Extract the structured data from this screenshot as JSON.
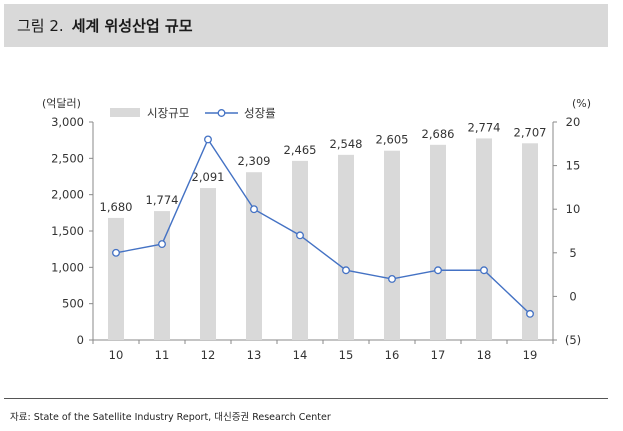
{
  "header": {
    "figure_label": "그림 2.",
    "title": "세계 위성산업 규모"
  },
  "source": "자료: State of the Satellite Industry Report, 대신증권 Research Center",
  "chart_data": {
    "type": "bar",
    "categories": [
      "10",
      "11",
      "12",
      "13",
      "14",
      "15",
      "16",
      "17",
      "18",
      "19"
    ],
    "y_left_unit": "(억달러)",
    "y_right_unit": "(%)",
    "ylim_left": [
      0,
      3000
    ],
    "ylim_right": [
      -5,
      20
    ],
    "yticks_left": [
      "0",
      "500",
      "1,000",
      "1,500",
      "2,000",
      "2,500",
      "3,000"
    ],
    "yticks_right": [
      "(5)",
      "0",
      "5",
      "10",
      "15",
      "20"
    ],
    "grid": false,
    "legend_position": "top",
    "series": [
      {
        "name": "시장규모",
        "type": "bar",
        "axis": "left",
        "color": "#d9d9d9",
        "values": [
          1680,
          1774,
          2091,
          2309,
          2465,
          2548,
          2605,
          2686,
          2774,
          2707
        ],
        "labels": [
          "1,680",
          "1,774",
          "2,091",
          "2,309",
          "2,465",
          "2,548",
          "2,605",
          "2,686",
          "2,774",
          "2,707"
        ]
      },
      {
        "name": "성장률",
        "type": "line",
        "axis": "right",
        "color": "#4472c4",
        "marker": "hollow-circle",
        "values": [
          5,
          6,
          18,
          10,
          7,
          3,
          2,
          3,
          3,
          -2
        ]
      }
    ]
  }
}
